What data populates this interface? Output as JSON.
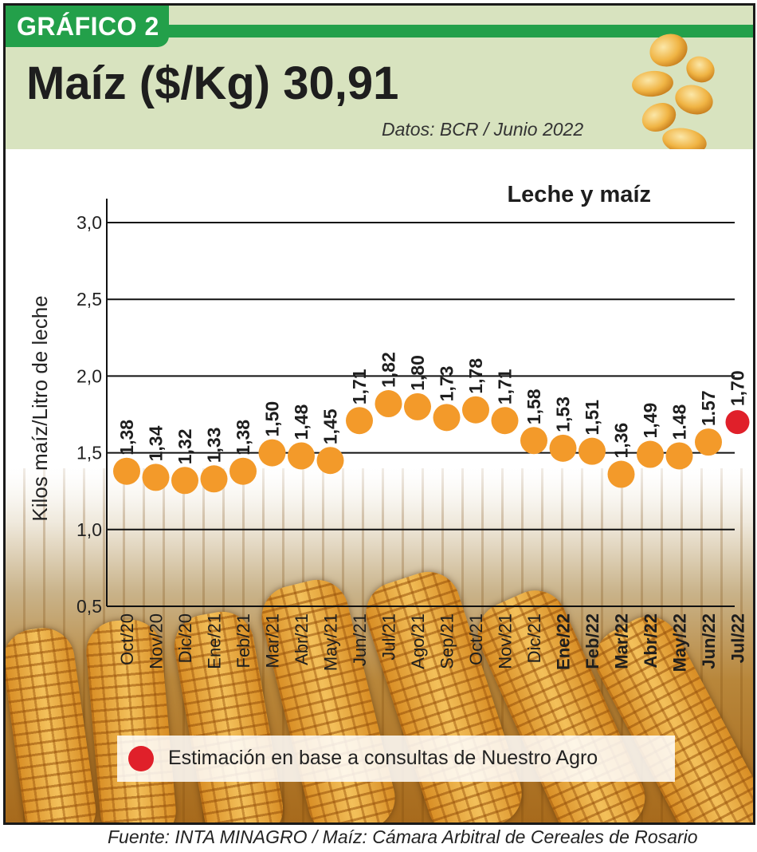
{
  "header": {
    "tag": "GRÁFICO 2",
    "title": "Maíz ($/Kg) 30,91",
    "subtitle": "Datos: BCR  / Junio 2022"
  },
  "footer": {
    "source": "Fuente: INTA MINAGRO /  Maíz: Cámara Arbitral de Cereales de Rosario"
  },
  "legend": {
    "estimate_label": "Estimación en base a consultas de Nuestro Agro",
    "estimate_color": "#e0202a"
  },
  "colors": {
    "point": "#f39a2a",
    "estimate": "#e0202a",
    "header_band": "#d8e3bf",
    "tab_green": "#23a04a"
  },
  "chart_data": {
    "type": "scatter",
    "title": "Leche y maíz",
    "xlabel": "",
    "ylabel": "Kilos maíz/Litro de leche",
    "ylim": [
      0.5,
      3.0
    ],
    "yticks": [
      "0,5",
      "1,0",
      "1,5",
      "2,0",
      "2,5",
      "3,0"
    ],
    "grid": true,
    "categories": [
      "Oct/20",
      "Nov/20",
      "Dic/20",
      "Ene/21",
      "Feb/21",
      "Mar/21",
      "Abr/21",
      "May/21",
      "Jun/21",
      "Jul/21",
      "Ago/21",
      "Sep/21",
      "Oct/21",
      "Nov/21",
      "Dic/21",
      "Ene/22",
      "Feb/22",
      "Mar/22",
      "Abr/22",
      "May/22",
      "Jun/22",
      "Jul/22"
    ],
    "bold_categories": [
      "Ene/22",
      "Feb/22",
      "Mar/22",
      "Abr/22",
      "May/22",
      "Jun/22",
      "Jul/22"
    ],
    "values": [
      1.38,
      1.34,
      1.32,
      1.33,
      1.38,
      1.5,
      1.48,
      1.45,
      1.71,
      1.82,
      1.8,
      1.73,
      1.78,
      1.71,
      1.58,
      1.53,
      1.51,
      1.36,
      1.49,
      1.48,
      1.57,
      1.7
    ],
    "labels": [
      "1,38",
      "1,34",
      "1,32",
      "1,33",
      "1,38",
      "1,50",
      "1,48",
      "1,45",
      "1,71",
      "1,82",
      "1,80",
      "1,73",
      "1,78",
      "1,71",
      "1,58",
      "1,53",
      "1,51",
      "1,36",
      "1,49",
      "1.48",
      "1.57",
      "1,70"
    ],
    "estimated_index": 21
  }
}
